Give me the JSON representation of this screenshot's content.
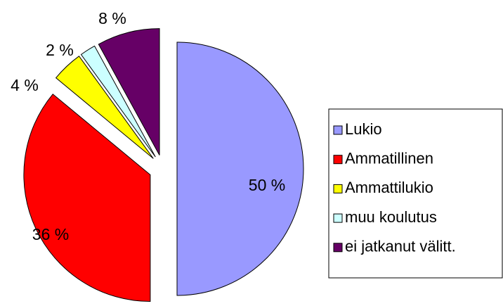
{
  "chart_data": {
    "type": "pie",
    "categories": [
      "Lukio",
      "Ammatillinen",
      "Ammattilukio",
      "muu koulutus",
      "ei jatkanut välitt."
    ],
    "values": [
      50,
      36,
      4,
      2,
      8
    ],
    "value_labels": [
      "50 %",
      "36 %",
      "4 %",
      "2 %",
      "8 %"
    ],
    "colors": [
      "#9999ff",
      "#ff0000",
      "#ffff00",
      "#ccffff",
      "#660066"
    ],
    "legend": "right"
  }
}
